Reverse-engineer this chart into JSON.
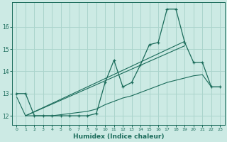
{
  "xlabel": "Humidex (Indice chaleur)",
  "bg_color": "#cceae4",
  "grid_color": "#aad4cc",
  "line_color": "#1a6b5a",
  "xlim": [
    -0.5,
    23.5
  ],
  "ylim": [
    11.6,
    17.1
  ],
  "yticks": [
    12,
    13,
    14,
    15,
    16
  ],
  "xticks": [
    0,
    1,
    2,
    3,
    4,
    5,
    6,
    7,
    8,
    9,
    10,
    11,
    12,
    13,
    14,
    15,
    16,
    17,
    18,
    19,
    20,
    21,
    22,
    23
  ],
  "hours": [
    0,
    1,
    2,
    3,
    4,
    5,
    6,
    7,
    8,
    9,
    10,
    11,
    12,
    13,
    14,
    15,
    16,
    17,
    18,
    19,
    20,
    21,
    22,
    23
  ],
  "humidex_main": [
    13.0,
    13.0,
    12.0,
    12.0,
    12.0,
    12.0,
    12.0,
    12.0,
    12.0,
    12.1,
    13.5,
    14.5,
    13.3,
    13.5,
    14.3,
    15.2,
    15.3,
    16.8,
    16.8,
    15.3,
    14.4,
    14.4,
    13.3,
    13.3
  ],
  "trend1_x": [
    1,
    19
  ],
  "trend1_y": [
    12.0,
    15.35
  ],
  "trend2_x": [
    1,
    19
  ],
  "trend2_y": [
    12.0,
    15.15
  ],
  "low_line": [
    12.85,
    12.0,
    12.0,
    12.0,
    12.0,
    12.05,
    12.1,
    12.15,
    12.2,
    12.3,
    12.5,
    12.65,
    12.8,
    12.9,
    13.05,
    13.2,
    13.35,
    13.5,
    13.6,
    13.7,
    13.8,
    13.85,
    13.3,
    13.3
  ]
}
